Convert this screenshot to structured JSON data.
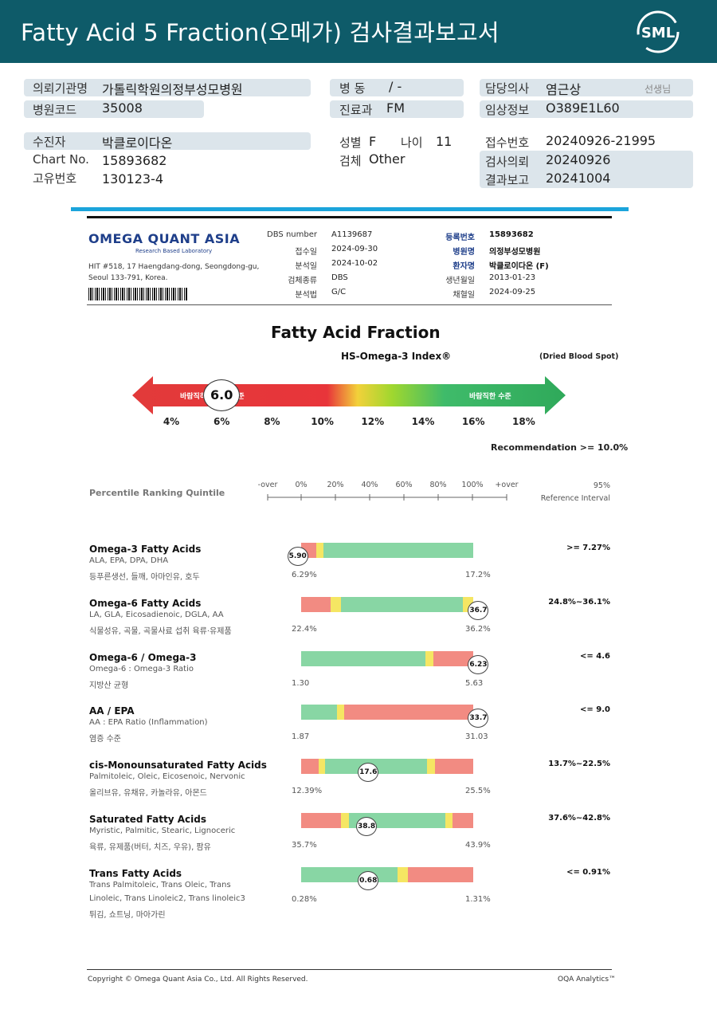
{
  "header": {
    "title": "Fatty Acid 5 Fraction(오메가) 검사결과보고서",
    "logo": "SML"
  },
  "patient": {
    "institution_label": "의뢰기관명",
    "institution": "가톨릭학원의정부성모병원",
    "hospital_code_label": "병원코드",
    "hospital_code": "35008",
    "ward_label": "병 동",
    "ward": "/ -",
    "dept_label": "진료과",
    "dept": "FM",
    "doctor_label": "담당의사",
    "doctor": "염근상",
    "doctor_suffix": "선생님",
    "clinical_label": "임상정보",
    "clinical": "O389E1L60",
    "patient_label": "수진자",
    "patient_name": "박클로이다온",
    "chart_label": "Chart No.",
    "chart_no": "15893682",
    "unique_label": "고유번호",
    "unique_no": "130123-4",
    "sex_label": "성별",
    "sex": "F",
    "age_label": "나이",
    "age": "11",
    "specimen_label": "검체",
    "specimen": "Other",
    "receipt_label": "접수번호",
    "receipt": "20240926-21995",
    "request_label": "검사의뢰",
    "request_date": "20240926",
    "result_label": "결과보고",
    "result_date": "20241004"
  },
  "report": {
    "company": "OMEGA QUANT ASIA",
    "company_sub": "Research Based Laboratory",
    "address1": "HIT #518, 17 Haengdang-dong, Seongdong-gu,",
    "address2": "Seoul 133-791, Korea.",
    "meta_left": [
      {
        "label": "DBS number",
        "value": "A1139687"
      },
      {
        "label": "접수일",
        "value": "2024-09-30"
      },
      {
        "label": "분석일",
        "value": "2024-10-02"
      },
      {
        "label": "검체종류",
        "value": "DBS"
      },
      {
        "label": "분석법",
        "value": "G/C"
      }
    ],
    "meta_right": [
      {
        "label": "등록번호",
        "value": "15893682"
      },
      {
        "label": "병원명",
        "value": "의정부성모병원"
      },
      {
        "label": "환자명",
        "value": "박클로이다온 (F)"
      },
      {
        "label": "생년월일",
        "value": "2013-01-23"
      },
      {
        "label": "채혈일",
        "value": "2024-09-25"
      }
    ],
    "main_title": "Fatty Acid Fraction",
    "index_title": "HS-Omega-3 Index®",
    "dried": "(Dried Blood Spot)",
    "gauge": {
      "value": "6.0",
      "bad_label": "바람직하지 않은 수준",
      "good_label": "바람직한 수준",
      "ticks": [
        "4%",
        "6%",
        "8%",
        "10%",
        "12%",
        "14%",
        "16%",
        "18%"
      ],
      "min": 3,
      "max": 19
    },
    "recommendation": "Recommendation  >= 10.0%",
    "percentile_label": "Percentile Ranking Quintile",
    "axis_labels": [
      "-over",
      "0%",
      "20%",
      "40%",
      "60%",
      "80%",
      "100%",
      "+over"
    ],
    "ref_header1": "95%",
    "ref_header2": "Reference Interval",
    "rows": [
      {
        "title": "Omega-3 Fatty Acids",
        "sub": "ALA, EPA, DPA, DHA",
        "food": "등푸른생선, 들깨, 아마인유, 호두",
        "min": "6.29%",
        "max": "17.2%",
        "value": "5.90",
        "ref": ">= 7.27%",
        "pos": -0.02,
        "colors": [
          "#f28b82",
          "#f5e663",
          "#88d6a4"
        ],
        "stops": [
          0.09,
          0.13
        ]
      },
      {
        "title": "Omega-6 Fatty Acids",
        "sub": "LA, GLA, Eicosadienoic, DGLA, AA",
        "food": "식물성유, 곡물, 곡물사료 섭취 육류·유제품",
        "min": "22.4%",
        "max": "36.2%",
        "value": "36.7",
        "ref": "24.8%~36.1%",
        "pos": 1.03,
        "colors": [
          "#f28b82",
          "#f5e663",
          "#88d6a4",
          "#f5e663"
        ],
        "stops": [
          0.17,
          0.23,
          0.94
        ]
      },
      {
        "title": "Omega-6 / Omega-3",
        "sub": "Omega-6 : Omega-3 Ratio",
        "food": "지방산 균형",
        "min": "1.30",
        "max": "5.63",
        "value": "6.23",
        "ref": "<= 4.6",
        "pos": 1.03,
        "colors": [
          "#88d6a4",
          "#f5e663",
          "#f28b82"
        ],
        "stops": [
          0.72,
          0.77
        ]
      },
      {
        "title": "AA / EPA",
        "sub": "AA : EPA Ratio (Inflammation)",
        "food": "염증 수준",
        "min": "1.87",
        "max": "31.03",
        "value": "33.7",
        "ref": "<= 9.0",
        "pos": 1.03,
        "colors": [
          "#88d6a4",
          "#f5e663",
          "#f28b82"
        ],
        "stops": [
          0.21,
          0.25
        ]
      },
      {
        "title": "cis-Monounsaturated Fatty Acids",
        "sub": "Palmitoleic, Oleic, Eicosenoic, Nervonic",
        "food": "올리브유, 유채유, 카놀라유, 아몬드",
        "min": "12.39%",
        "max": "25.5%",
        "value": "17.6",
        "ref": "13.7%~22.5%",
        "pos": 0.39,
        "colors": [
          "#f28b82",
          "#f5e663",
          "#88d6a4",
          "#f5e663",
          "#f28b82"
        ],
        "stops": [
          0.1,
          0.14,
          0.73,
          0.78
        ]
      },
      {
        "title": "Saturated Fatty Acids",
        "sub": "Myristic, Palmitic, Stearic, Lignoceric",
        "food": "육류, 유제품(버터, 치즈, 우유), 팜유",
        "min": "35.7%",
        "max": "43.9%",
        "value": "38.8",
        "ref": "37.6%~42.8%",
        "pos": 0.38,
        "colors": [
          "#f28b82",
          "#f5e663",
          "#88d6a4",
          "#f5e663",
          "#f28b82"
        ],
        "stops": [
          0.23,
          0.28,
          0.84,
          0.88
        ]
      },
      {
        "title": "Trans Fatty Acids",
        "sub": "Trans Palmitoleic, Trans Oleic, Trans",
        "sub2": "Linoleic, Trans Linoleic2, Trans linoleic3",
        "food": "튀김, 쇼트닝, 마아가린",
        "min": "0.28%",
        "max": "1.31%",
        "value": "0.68",
        "ref": "<= 0.91%",
        "pos": 0.39,
        "colors": [
          "#88d6a4",
          "#f5e663",
          "#f28b82"
        ],
        "stops": [
          0.56,
          0.62
        ]
      }
    ],
    "copyright": "Copyright © Omega Quant Asia Co., Ltd.  All Rights Reserved.",
    "analytics": "OQA Analytics™"
  }
}
